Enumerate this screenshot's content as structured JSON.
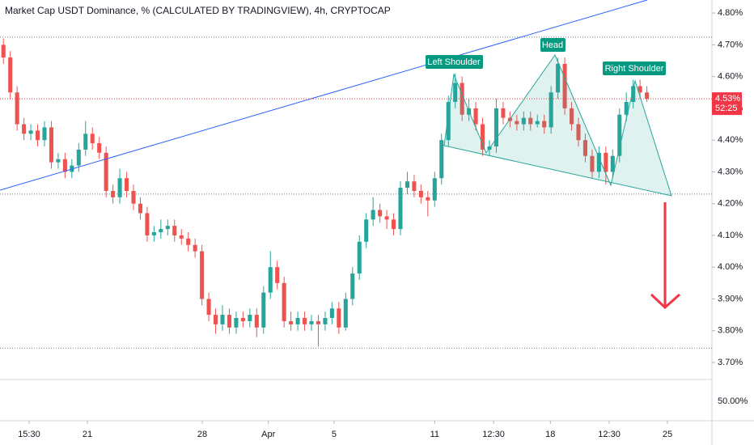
{
  "chart_data": {
    "type": "candlestick",
    "title": "Market Cap USDT Dominance, % (CALCULATED BY TRADINGVIEW), 4h, CRYPTOCAP",
    "up_color": "#26a69a",
    "down_color": "#ef5350",
    "xlim": [
      -0.5,
      103.5
    ],
    "xticks": [
      {
        "value": 3.75,
        "label": "15:30"
      },
      {
        "value": 12.27,
        "label": "21"
      },
      {
        "value": 29.05,
        "label": "28"
      },
      {
        "value": 38.7,
        "label": "Apr"
      },
      {
        "value": 48.3,
        "label": "5"
      },
      {
        "value": 63,
        "label": "11"
      },
      {
        "value": 71.6,
        "label": "12:30"
      },
      {
        "value": 79.9,
        "label": "18"
      },
      {
        "value": 88.5,
        "label": "12:30"
      },
      {
        "value": 97,
        "label": "25"
      }
    ],
    "ylim": [
      3.649,
      4.841
    ],
    "yticks": [
      {
        "value": 4.8,
        "label": "4.80%"
      },
      {
        "value": 4.7,
        "label": "4.70%"
      },
      {
        "value": 4.6,
        "label": "4.60%"
      },
      {
        "value": 4.5,
        "label": "4.50%"
      },
      {
        "value": 4.4,
        "label": "4.40%"
      },
      {
        "value": 4.3,
        "label": "4.30%"
      },
      {
        "value": 4.2,
        "label": "4.20%"
      },
      {
        "value": 4.1,
        "label": "4.10%"
      },
      {
        "value": 4.0,
        "label": "4.00%"
      },
      {
        "value": 3.9,
        "label": "3.90%"
      },
      {
        "value": 3.8,
        "label": "3.80%"
      },
      {
        "value": 3.7,
        "label": "3.70%"
      }
    ],
    "levels": [
      4.724,
      4.23,
      3.745
    ],
    "last_price": {
      "value": 4.53,
      "label": "4.53%"
    },
    "countdown": "52:25",
    "secondary_pane_label": "50.00%",
    "annotations": [
      "Left Shoulder",
      "Head",
      "Right Shoulder"
    ],
    "ohlc": [
      [
        4.7,
        4.72,
        4.64,
        4.66
      ],
      [
        4.66,
        4.68,
        4.53,
        4.55
      ],
      [
        4.55,
        4.57,
        4.43,
        4.45
      ],
      [
        4.45,
        4.47,
        4.4,
        4.42
      ],
      [
        4.42,
        4.45,
        4.4,
        4.43
      ],
      [
        4.43,
        4.45,
        4.38,
        4.4
      ],
      [
        4.4,
        4.46,
        4.38,
        4.44
      ],
      [
        4.44,
        4.46,
        4.31,
        4.33
      ],
      [
        4.33,
        4.36,
        4.31,
        4.34
      ],
      [
        4.34,
        4.36,
        4.28,
        4.3
      ],
      [
        4.3,
        4.34,
        4.28,
        4.32
      ],
      [
        4.32,
        4.39,
        4.3,
        4.37
      ],
      [
        4.37,
        4.46,
        4.35,
        4.42
      ],
      [
        4.42,
        4.44,
        4.37,
        4.39
      ],
      [
        4.39,
        4.41,
        4.34,
        4.36
      ],
      [
        4.36,
        4.38,
        4.22,
        4.24
      ],
      [
        4.24,
        4.26,
        4.2,
        4.22
      ],
      [
        4.22,
        4.31,
        4.2,
        4.28
      ],
      [
        4.28,
        4.3,
        4.22,
        4.24
      ],
      [
        4.24,
        4.26,
        4.18,
        4.2
      ],
      [
        4.2,
        4.22,
        4.15,
        4.17
      ],
      [
        4.17,
        4.19,
        4.08,
        4.1
      ],
      [
        4.1,
        4.13,
        4.08,
        4.11
      ],
      [
        4.11,
        4.15,
        4.09,
        4.12
      ],
      [
        4.12,
        4.15,
        4.1,
        4.13
      ],
      [
        4.13,
        4.15,
        4.08,
        4.1
      ],
      [
        4.1,
        4.12,
        4.07,
        4.09
      ],
      [
        4.09,
        4.11,
        4.05,
        4.07
      ],
      [
        4.07,
        4.09,
        4.03,
        4.05
      ],
      [
        4.05,
        4.07,
        3.88,
        3.9
      ],
      [
        3.9,
        3.92,
        3.83,
        3.85
      ],
      [
        3.85,
        3.87,
        3.79,
        3.82
      ],
      [
        3.82,
        3.88,
        3.8,
        3.85
      ],
      [
        3.85,
        3.87,
        3.79,
        3.81
      ],
      [
        3.81,
        3.86,
        3.79,
        3.84
      ],
      [
        3.84,
        3.86,
        3.81,
        3.83
      ],
      [
        3.83,
        3.87,
        3.81,
        3.85
      ],
      [
        3.85,
        3.87,
        3.78,
        3.81
      ],
      [
        3.81,
        3.94,
        3.79,
        3.92
      ],
      [
        3.92,
        4.05,
        3.9,
        4.0
      ],
      [
        4.0,
        4.02,
        3.93,
        3.95
      ],
      [
        3.95,
        3.97,
        3.81,
        3.83
      ],
      [
        3.83,
        3.86,
        3.8,
        3.82
      ],
      [
        3.82,
        3.86,
        3.8,
        3.84
      ],
      [
        3.84,
        3.86,
        3.8,
        3.82
      ],
      [
        3.82,
        3.85,
        3.8,
        3.83
      ],
      [
        3.83,
        3.85,
        3.75,
        3.82
      ],
      [
        3.82,
        3.86,
        3.8,
        3.84
      ],
      [
        3.84,
        3.89,
        3.82,
        3.87
      ],
      [
        3.87,
        3.89,
        3.79,
        3.81
      ],
      [
        3.81,
        3.92,
        3.8,
        3.9
      ],
      [
        3.9,
        4.0,
        3.88,
        3.98
      ],
      [
        3.98,
        4.1,
        3.96,
        4.08
      ],
      [
        4.08,
        4.17,
        4.06,
        4.15
      ],
      [
        4.15,
        4.22,
        4.13,
        4.18
      ],
      [
        4.18,
        4.2,
        4.14,
        4.16
      ],
      [
        4.16,
        4.18,
        4.12,
        4.15
      ],
      [
        4.15,
        4.17,
        4.1,
        4.12
      ],
      [
        4.12,
        4.27,
        4.1,
        4.25
      ],
      [
        4.25,
        4.3,
        4.23,
        4.27
      ],
      [
        4.27,
        4.29,
        4.22,
        4.24
      ],
      [
        4.24,
        4.26,
        4.2,
        4.22
      ],
      [
        4.22,
        4.24,
        4.16,
        4.21
      ],
      [
        4.21,
        4.3,
        4.19,
        4.28
      ],
      [
        4.28,
        4.42,
        4.26,
        4.4
      ],
      [
        4.4,
        4.54,
        4.38,
        4.52
      ],
      [
        4.52,
        4.61,
        4.5,
        4.58
      ],
      [
        4.58,
        4.6,
        4.46,
        4.48
      ],
      [
        4.48,
        4.53,
        4.46,
        4.5
      ],
      [
        4.5,
        4.52,
        4.43,
        4.45
      ],
      [
        4.45,
        4.47,
        4.35,
        4.37
      ],
      [
        4.37,
        4.4,
        4.35,
        4.38
      ],
      [
        4.38,
        4.53,
        4.36,
        4.5
      ],
      [
        4.5,
        4.52,
        4.45,
        4.47
      ],
      [
        4.47,
        4.49,
        4.44,
        4.46
      ],
      [
        4.46,
        4.48,
        4.43,
        4.45
      ],
      [
        4.45,
        4.49,
        4.43,
        4.47
      ],
      [
        4.47,
        4.49,
        4.43,
        4.45
      ],
      [
        4.45,
        4.48,
        4.44,
        4.46
      ],
      [
        4.46,
        4.48,
        4.42,
        4.44
      ],
      [
        4.44,
        4.57,
        4.42,
        4.55
      ],
      [
        4.55,
        4.66,
        4.53,
        4.64
      ],
      [
        4.64,
        4.66,
        4.48,
        4.5
      ],
      [
        4.5,
        4.52,
        4.43,
        4.45
      ],
      [
        4.45,
        4.47,
        4.38,
        4.4
      ],
      [
        4.4,
        4.42,
        4.33,
        4.35
      ],
      [
        4.35,
        4.37,
        4.28,
        4.3
      ],
      [
        4.3,
        4.38,
        4.28,
        4.36
      ],
      [
        4.36,
        4.38,
        4.26,
        4.3
      ],
      [
        4.3,
        4.37,
        4.28,
        4.35
      ],
      [
        4.35,
        4.5,
        4.33,
        4.48
      ],
      [
        4.48,
        4.55,
        4.46,
        4.52
      ],
      [
        4.52,
        4.59,
        4.5,
        4.57
      ],
      [
        4.57,
        4.59,
        4.53,
        4.55
      ],
      [
        4.55,
        4.57,
        4.52,
        4.53
      ]
    ]
  }
}
